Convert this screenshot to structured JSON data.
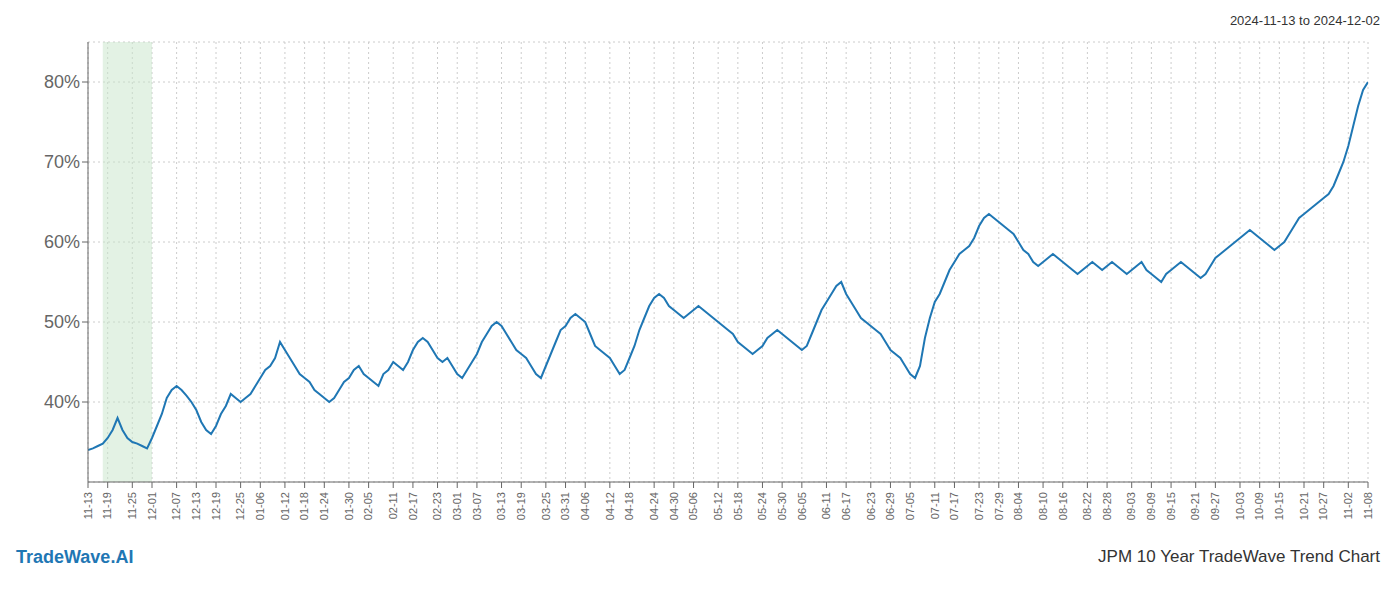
{
  "chart_data": {
    "type": "line",
    "title": "JPM 10 Year TradeWave Trend Chart",
    "subtitle": "2024-11-13 to 2024-12-02",
    "annotations": [
      "TradeWave.AI"
    ],
    "categories": [
      "11-13",
      null,
      null,
      null,
      "11-19",
      null,
      null,
      null,
      null,
      "11-25",
      null,
      null,
      null,
      "12-01",
      null,
      null,
      null,
      null,
      "12-07",
      null,
      null,
      null,
      "12-13",
      null,
      null,
      null,
      "12-19",
      null,
      null,
      null,
      null,
      "12-25",
      null,
      null,
      null,
      "01-06",
      null,
      null,
      null,
      null,
      "01-12",
      null,
      null,
      null,
      "01-18",
      null,
      null,
      null,
      "01-24",
      null,
      null,
      null,
      null,
      "01-30",
      null,
      null,
      null,
      "02-05",
      null,
      null,
      null,
      null,
      "02-11",
      null,
      null,
      null,
      "02-17",
      null,
      null,
      null,
      null,
      "02-23",
      null,
      null,
      null,
      "03-01",
      null,
      null,
      null,
      "03-07",
      null,
      null,
      null,
      null,
      "03-13",
      null,
      null,
      null,
      "03-19",
      null,
      null,
      null,
      null,
      "03-25",
      null,
      null,
      null,
      "03-31",
      null,
      null,
      null,
      "04-06",
      null,
      null,
      null,
      null,
      "04-12",
      null,
      null,
      null,
      "04-18",
      null,
      null,
      null,
      null,
      "04-24",
      null,
      null,
      null,
      "04-30",
      null,
      null,
      null,
      "05-06",
      null,
      null,
      null,
      null,
      "05-12",
      null,
      null,
      null,
      "05-18",
      null,
      null,
      null,
      null,
      "05-24",
      null,
      null,
      null,
      "05-30",
      null,
      null,
      null,
      "06-05",
      null,
      null,
      null,
      null,
      "06-11",
      null,
      null,
      null,
      "06-17",
      null,
      null,
      null,
      null,
      "06-23",
      null,
      null,
      null,
      "06-29",
      null,
      null,
      null,
      "07-05",
      null,
      null,
      null,
      null,
      "07-11",
      null,
      null,
      null,
      "07-17",
      null,
      null,
      null,
      null,
      "07-23",
      null,
      null,
      null,
      "07-29",
      null,
      null,
      null,
      "08-04",
      null,
      null,
      null,
      null,
      "08-10",
      null,
      null,
      null,
      "08-16",
      null,
      null,
      null,
      null,
      "08-22",
      null,
      null,
      null,
      "08-28",
      null,
      null,
      null,
      null,
      "09-03",
      null,
      null,
      null,
      "09-09",
      null,
      null,
      null,
      "09-15",
      null,
      null,
      null,
      null,
      "09-21",
      null,
      null,
      null,
      "09-27",
      null,
      null,
      null,
      null,
      "10-03",
      null,
      null,
      null,
      "10-09",
      null,
      null,
      null,
      "10-15",
      null,
      null,
      null,
      null,
      "10-21",
      null,
      null,
      null,
      "10-27",
      null,
      null,
      null,
      null,
      "11-02",
      null,
      null,
      null,
      "11-08"
    ],
    "values": [
      34.0,
      34.2,
      34.5,
      34.8,
      35.5,
      36.5,
      38.0,
      36.5,
      35.5,
      35.0,
      34.8,
      34.5,
      34.2,
      35.5,
      37.0,
      38.5,
      40.5,
      41.5,
      42.0,
      41.5,
      40.8,
      40.0,
      39.0,
      37.5,
      36.5,
      36.0,
      37.0,
      38.5,
      39.5,
      41.0,
      40.5,
      40.0,
      40.5,
      41.0,
      42.0,
      43.0,
      44.0,
      44.5,
      45.5,
      47.5,
      46.5,
      45.5,
      44.5,
      43.5,
      43.0,
      42.5,
      41.5,
      41.0,
      40.5,
      40.0,
      40.5,
      41.5,
      42.5,
      43.0,
      44.0,
      44.5,
      43.5,
      43.0,
      42.5,
      42.0,
      43.5,
      44.0,
      45.0,
      44.5,
      44.0,
      45.0,
      46.5,
      47.5,
      48.0,
      47.5,
      46.5,
      45.5,
      45.0,
      45.5,
      44.5,
      43.5,
      43.0,
      44.0,
      45.0,
      46.0,
      47.5,
      48.5,
      49.5,
      50.0,
      49.5,
      48.5,
      47.5,
      46.5,
      46.0,
      45.5,
      44.5,
      43.5,
      43.0,
      44.5,
      46.0,
      47.5,
      49.0,
      49.5,
      50.5,
      51.0,
      50.5,
      50.0,
      48.5,
      47.0,
      46.5,
      46.0,
      45.5,
      44.5,
      43.5,
      44.0,
      45.5,
      47.0,
      49.0,
      50.5,
      52.0,
      53.0,
      53.5,
      53.0,
      52.0,
      51.5,
      51.0,
      50.5,
      51.0,
      51.5,
      52.0,
      51.5,
      51.0,
      50.5,
      50.0,
      49.5,
      49.0,
      48.5,
      47.5,
      47.0,
      46.5,
      46.0,
      46.5,
      47.0,
      48.0,
      48.5,
      49.0,
      48.5,
      48.0,
      47.5,
      47.0,
      46.5,
      47.0,
      48.5,
      50.0,
      51.5,
      52.5,
      53.5,
      54.5,
      55.0,
      53.5,
      52.5,
      51.5,
      50.5,
      50.0,
      49.5,
      49.0,
      48.5,
      47.5,
      46.5,
      46.0,
      45.5,
      44.5,
      43.5,
      43.0,
      44.5,
      48.0,
      50.5,
      52.5,
      53.5,
      55.0,
      56.5,
      57.5,
      58.5,
      59.0,
      59.5,
      60.5,
      62.0,
      63.0,
      63.5,
      63.0,
      62.5,
      62.0,
      61.5,
      61.0,
      60.0,
      59.0,
      58.5,
      57.5,
      57.0,
      57.5,
      58.0,
      58.5,
      58.0,
      57.5,
      57.0,
      56.5,
      56.0,
      56.5,
      57.0,
      57.5,
      57.0,
      56.5,
      57.0,
      57.5,
      57.0,
      56.5,
      56.0,
      56.5,
      57.0,
      57.5,
      56.5,
      56.0,
      55.5,
      55.0,
      56.0,
      56.5,
      57.0,
      57.5,
      57.0,
      56.5,
      56.0,
      55.5,
      56.0,
      57.0,
      58.0,
      58.5,
      59.0,
      59.5,
      60.0,
      60.5,
      61.0,
      61.5,
      61.0,
      60.5,
      60.0,
      59.5,
      59.0,
      59.5,
      60.0,
      61.0,
      62.0,
      63.0,
      63.5,
      64.0,
      64.5,
      65.0,
      65.5,
      66.0,
      67.0,
      68.5,
      70.0,
      72.0,
      74.5,
      77.0,
      79.0,
      80.0
    ],
    "color": "#1f77b4",
    "ylim": [
      30,
      85
    ],
    "yticks": [
      {
        "value": 40,
        "label": "40%"
      },
      {
        "value": 50,
        "label": "50%"
      },
      {
        "value": 60,
        "label": "60%"
      },
      {
        "value": 70,
        "label": "70%"
      },
      {
        "value": 80,
        "label": "80%"
      }
    ],
    "grid": true,
    "highlight": {
      "start": 3,
      "end": 13,
      "color": "#c8e6c9"
    }
  }
}
